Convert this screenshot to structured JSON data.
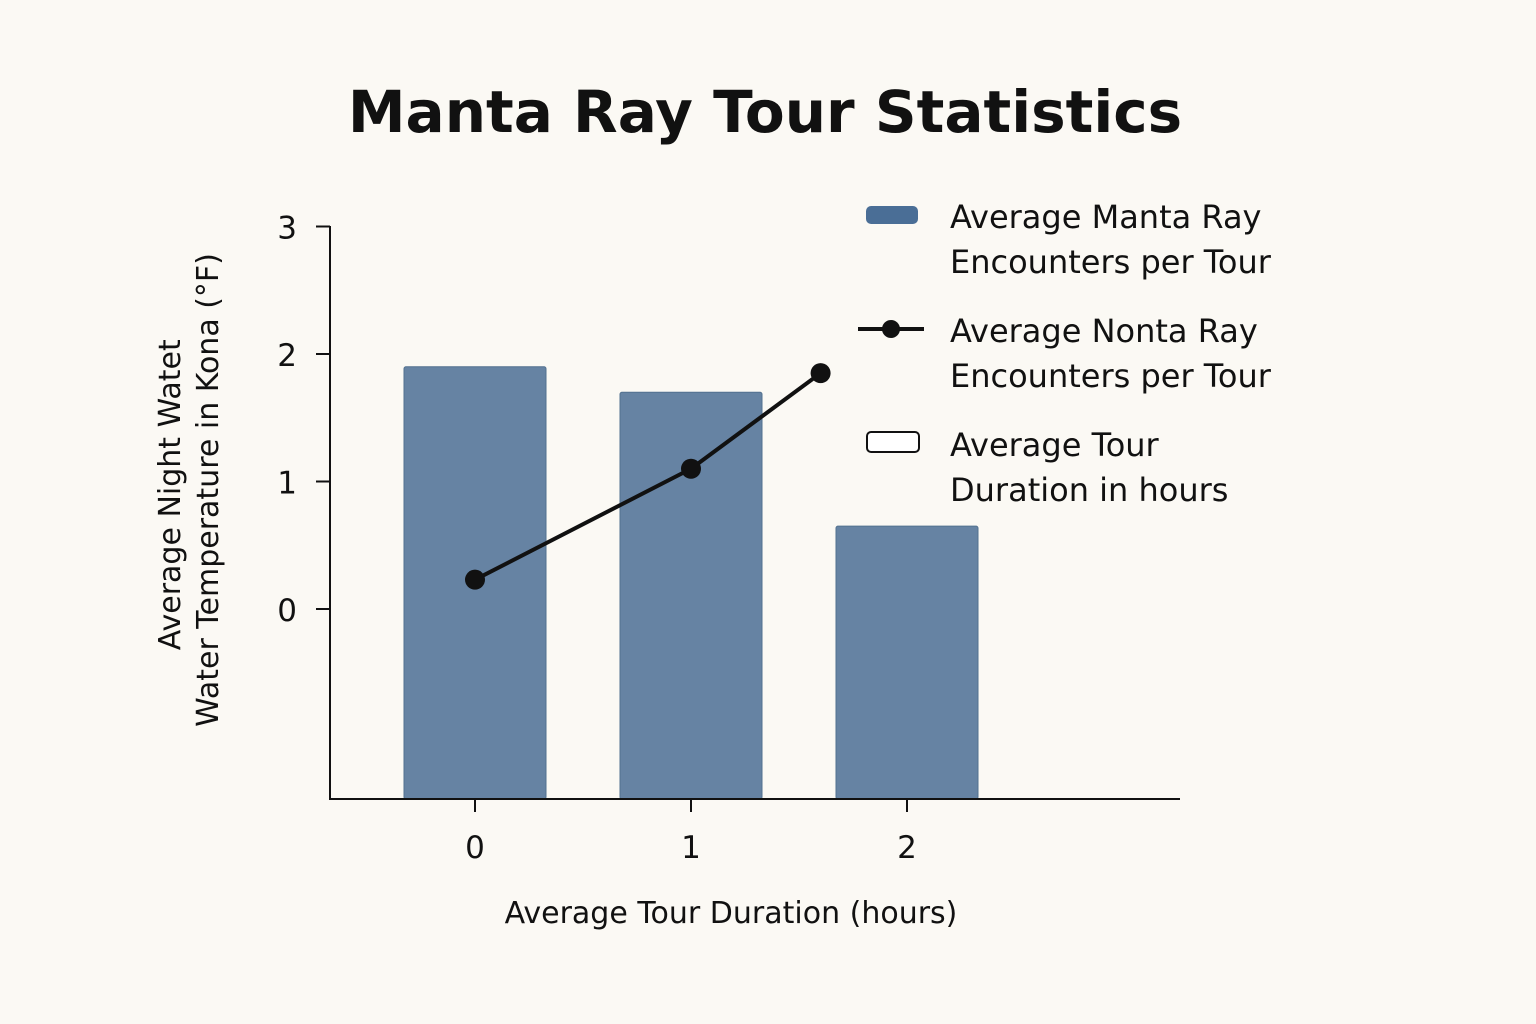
{
  "chart_data": {
    "type": "bar",
    "title": "Manta Ray Tour Statistics",
    "xlabel": "Average Tour Duration (hours)",
    "ylabel_lines": [
      "Average Night Watet",
      "Water Temperature in Kona (°F)"
    ],
    "categories": [
      "0",
      "1",
      "2"
    ],
    "yticks": [
      "0",
      "1",
      "2",
      "3"
    ],
    "ylim": [
      -1.5,
      3
    ],
    "grid": false,
    "legend_position": "top-right",
    "series": [
      {
        "name": "Average Manta  Ray\nEncounters per Tour",
        "type": "bar",
        "x": [
          0,
          1,
          2
        ],
        "values": [
          1.9,
          1.7,
          0.65
        ],
        "color": "#6683a3"
      },
      {
        "name": "Average Nonta Ray\nEncounters per Tour",
        "type": "line",
        "x": [
          0,
          1,
          1.6
        ],
        "values": [
          0.23,
          1.1,
          1.85
        ],
        "color": "#111111"
      },
      {
        "name": "Average Tour\nDuration in hours",
        "type": "legend-only",
        "color": "#ffffff"
      }
    ]
  }
}
